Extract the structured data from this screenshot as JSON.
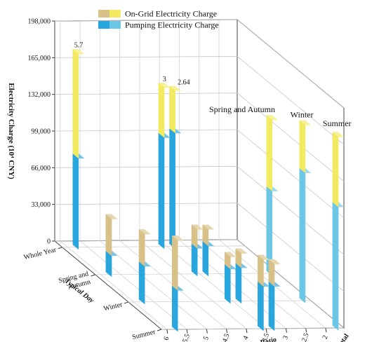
{
  "chart_data": {
    "type": "bar3d",
    "ylabel": "Electricity Charge (10⁴ CNY)",
    "ylim": [
      0,
      198000
    ],
    "yticks": [
      "0",
      "33,000",
      "66,000",
      "99,000",
      "132,000",
      "165,000",
      "198,000"
    ],
    "depth_axis": {
      "label": "Typical Day",
      "ticks": [
        "Whole Year",
        "Spring and Autumn",
        "Winter",
        "Summer"
      ]
    },
    "x_axis": {
      "label": "Peak-Valley Ratio",
      "ticks": [
        "6",
        "5.5",
        "5",
        "4.5",
        "4",
        "3.5",
        "3",
        "2.5",
        "2"
      ],
      "extra_label": "Total"
    },
    "legend": {
      "position": "top-center",
      "entries": [
        {
          "label": "On-Grid Electricity Charge",
          "color": "#f2ea60"
        },
        {
          "label": "Pumping Electricity Charge",
          "color": "#2aa6df"
        }
      ]
    },
    "series_colors": {
      "whole_year_on_grid": "#f2ea60",
      "whole_year_pumping": "#2aa6df",
      "typical_day_on_grid": "#d8c187",
      "typical_day_pumping": "#2aa6df",
      "total_on_grid": "#f2ea60",
      "total_pumping": "#6cc6e6"
    },
    "data_labels": [
      "5.7",
      "3",
      "2.64"
    ],
    "annotations": [
      "Spring and Autumn",
      "Winter",
      "Summer"
    ],
    "bars": [
      {
        "day": "Whole Year",
        "ratio": "5.7",
        "pumping": 82000,
        "on_grid": 94000,
        "label": "5.7"
      },
      {
        "day": "Whole Year",
        "ratio": "3",
        "pumping": 100000,
        "on_grid": 45000,
        "label": "3"
      },
      {
        "day": "Whole Year",
        "ratio": "2.64",
        "pumping": 104000,
        "on_grid": 38000,
        "label": "2.64"
      },
      {
        "day": "Spring and Autumn",
        "ratio": "5.7",
        "pumping": 19000,
        "on_grid": 33000
      },
      {
        "day": "Winter",
        "ratio": "5.7",
        "pumping": 34000,
        "on_grid": 29000
      },
      {
        "day": "Summer",
        "ratio": "5.7",
        "pumping": 37000,
        "on_grid": 45000
      },
      {
        "day": "Spring and Autumn",
        "ratio": "3",
        "pumping": 25000,
        "on_grid": 17000
      },
      {
        "day": "Spring and Autumn",
        "ratio": "2.64",
        "pumping": 27000,
        "on_grid": 15000
      },
      {
        "day": "Winter",
        "ratio": "3",
        "pumping": 31000,
        "on_grid": 11000
      },
      {
        "day": "Winter",
        "ratio": "2.64",
        "pumping": 32000,
        "on_grid": 13000
      },
      {
        "day": "Summer",
        "ratio": "3",
        "pumping": 40000,
        "on_grid": 24000
      },
      {
        "day": "Summer",
        "ratio": "2.64",
        "pumping": 40000,
        "on_grid": 20000
      },
      {
        "day": "Spring and Autumn",
        "ratio": "Total",
        "pumping": 76000,
        "on_grid": 64000,
        "label": "Spring and Autumn"
      },
      {
        "day": "Winter",
        "ratio": "Total",
        "pumping": 117000,
        "on_grid": 43000,
        "label": "Winter"
      },
      {
        "day": "Summer",
        "ratio": "Total",
        "pumping": 111000,
        "on_grid": 63000,
        "label": "Summer"
      }
    ]
  }
}
